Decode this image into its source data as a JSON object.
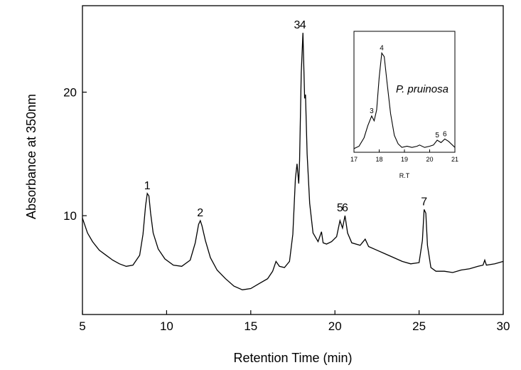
{
  "chart_data": [
    {
      "type": "line",
      "xlabel": "Retention Time (min)",
      "ylabel": "Absorbance at 350nm",
      "xlim": [
        5,
        30
      ],
      "ylim": [
        2,
        27
      ],
      "xticks": [
        5,
        10,
        15,
        20,
        25,
        30
      ],
      "yticks": [
        10,
        20
      ],
      "grid": false,
      "series": [
        {
          "x": [
            5.0,
            5.3,
            5.6,
            6.0,
            6.4,
            6.8,
            7.2,
            7.6,
            8.0,
            8.4,
            8.6,
            8.75,
            8.85,
            8.95,
            9.05,
            9.2,
            9.5,
            9.9,
            10.4,
            10.9,
            11.4,
            11.7,
            11.9,
            12.0,
            12.1,
            12.3,
            12.6,
            13.0,
            13.5,
            14.0,
            14.5,
            15.0,
            15.5,
            16.0,
            16.3,
            16.5,
            16.7,
            17.0,
            17.3,
            17.5,
            17.65,
            17.75,
            17.85,
            17.9,
            18.0,
            18.1,
            18.2,
            18.25,
            18.35,
            18.5,
            18.7,
            19.0,
            19.2,
            19.3,
            19.5,
            19.8,
            20.1,
            20.3,
            20.45,
            20.6,
            20.75,
            21.0,
            21.5,
            21.8,
            22.0,
            22.5,
            23.0,
            23.5,
            24.0,
            24.5,
            25.0,
            25.2,
            25.3,
            25.4,
            25.5,
            25.7,
            26.0,
            26.5,
            27.0,
            27.5,
            28.0,
            28.5,
            28.8,
            28.9,
            29.0,
            29.5,
            30.0
          ],
          "y": [
            9.8,
            8.6,
            7.9,
            7.2,
            6.8,
            6.4,
            6.1,
            5.9,
            6.0,
            6.8,
            8.5,
            10.8,
            11.8,
            11.6,
            10.2,
            8.6,
            7.3,
            6.5,
            6.0,
            5.9,
            6.4,
            7.8,
            9.3,
            9.6,
            9.2,
            8.0,
            6.6,
            5.6,
            4.9,
            4.3,
            4.0,
            4.1,
            4.5,
            4.9,
            5.5,
            6.3,
            5.9,
            5.8,
            6.3,
            8.5,
            13.0,
            14.2,
            12.6,
            14.5,
            21.5,
            24.8,
            19.5,
            19.8,
            15.0,
            11.0,
            8.6,
            7.9,
            8.7,
            7.8,
            7.7,
            7.9,
            8.3,
            9.6,
            9.0,
            10.0,
            8.6,
            7.8,
            7.6,
            8.1,
            7.5,
            7.2,
            6.9,
            6.6,
            6.3,
            6.1,
            6.2,
            8.0,
            10.5,
            10.2,
            7.6,
            5.8,
            5.5,
            5.5,
            5.4,
            5.6,
            5.7,
            5.9,
            6.0,
            6.4,
            6.0,
            6.1,
            6.3
          ]
        }
      ],
      "annotations": [
        "1",
        "2",
        "3",
        "4",
        "5",
        "6",
        "7"
      ]
    },
    {
      "type": "line",
      "title": "P. pruinosa",
      "xlabel": "R.T",
      "ylabel": "",
      "xlim": [
        17,
        21
      ],
      "ylim": [
        0,
        1
      ],
      "xticks": [
        17,
        18,
        19,
        20,
        21
      ],
      "grid": false,
      "series": [
        {
          "x": [
            17.0,
            17.2,
            17.4,
            17.55,
            17.7,
            17.8,
            17.9,
            18.0,
            18.1,
            18.2,
            18.3,
            18.45,
            18.6,
            18.75,
            18.9,
            19.1,
            19.3,
            19.5,
            19.6,
            19.8,
            20.0,
            20.15,
            20.3,
            20.45,
            20.6,
            20.75,
            21.0
          ],
          "y": [
            0.03,
            0.05,
            0.12,
            0.22,
            0.3,
            0.26,
            0.35,
            0.62,
            0.82,
            0.79,
            0.6,
            0.32,
            0.14,
            0.07,
            0.04,
            0.05,
            0.04,
            0.05,
            0.06,
            0.04,
            0.05,
            0.06,
            0.1,
            0.08,
            0.11,
            0.09,
            0.04
          ]
        }
      ],
      "annotations": [
        "3",
        "4",
        "5",
        "6"
      ]
    }
  ]
}
